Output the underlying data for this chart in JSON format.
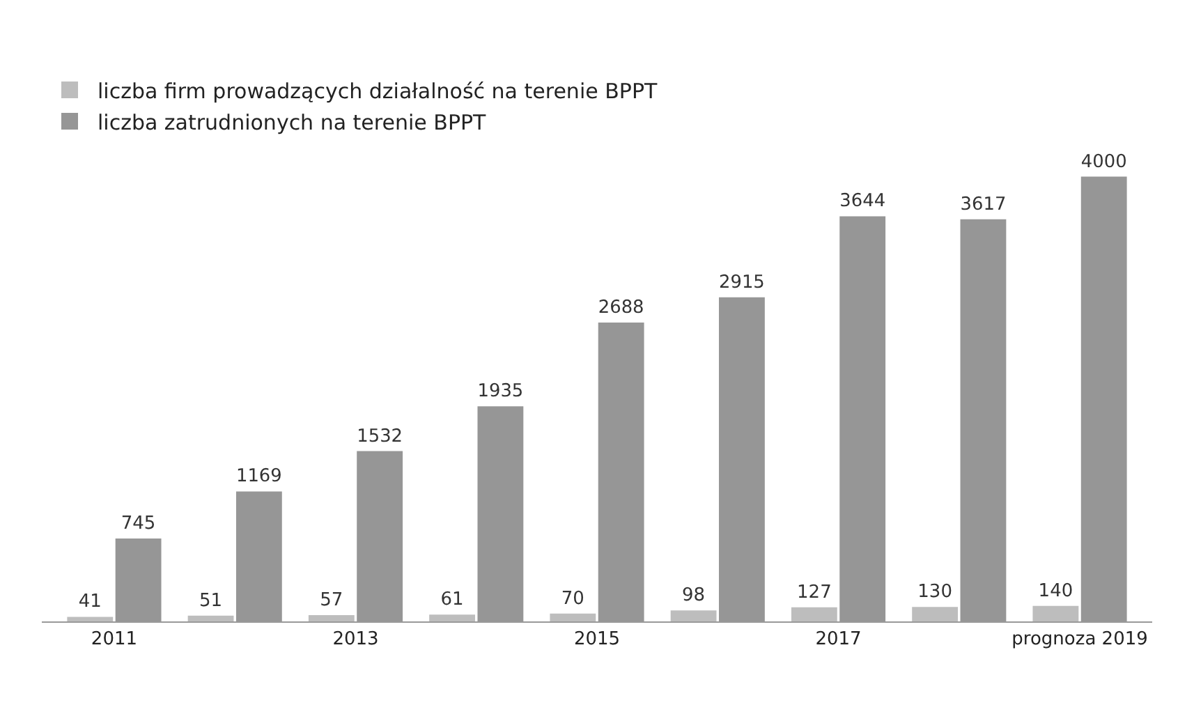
{
  "chart_data": {
    "type": "bar",
    "categories": [
      "2011",
      null,
      "2013",
      null,
      "2015",
      null,
      "2017",
      null,
      "prognoza 2019"
    ],
    "series": [
      {
        "name": "liczba firm prowadzących działalność na terenie BPPT",
        "color": "#bdbdbd",
        "values": [
          41,
          51,
          57,
          61,
          70,
          98,
          127,
          130,
          140
        ]
      },
      {
        "name": "liczba zatrudnionych na terenie BPPT",
        "color": "#969696",
        "values": [
          745,
          1169,
          1532,
          1935,
          2688,
          2915,
          3644,
          3617,
          4000
        ]
      }
    ],
    "data_labels": true,
    "legend": "top left",
    "tick_labels": "x"
  }
}
